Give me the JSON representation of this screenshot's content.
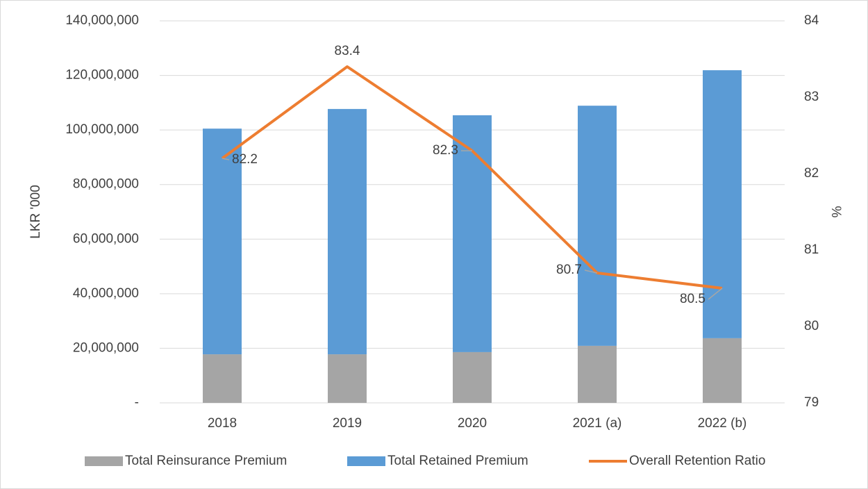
{
  "chart_data": {
    "type": "bar-line",
    "categories": [
      "2018",
      "2019",
      "2020",
      "2021 (a)",
      "2022 (b)"
    ],
    "series": [
      {
        "name": "Total Reinsurance Premium",
        "color": "#a5a5a5",
        "type": "bar",
        "values": [
          17800000,
          17800000,
          18600000,
          20900000,
          23700000
        ]
      },
      {
        "name": "Total Retained Premium",
        "color": "#5b9bd5",
        "type": "bar",
        "values": [
          82700000,
          89900000,
          86800000,
          88000000,
          98200000
        ]
      },
      {
        "name": "Overall Retention Ratio",
        "color": "#ed7d31",
        "type": "line",
        "axis": "y2",
        "values": [
          82.2,
          83.4,
          82.3,
          80.7,
          80.5
        ]
      }
    ],
    "stacked": true,
    "ylabel": "LKR '000",
    "y2label": "%",
    "ylim": [
      0,
      140000000
    ],
    "yticks": [
      {
        "value": 0,
        "label": "-"
      },
      {
        "value": 20000000,
        "label": "20,000,000"
      },
      {
        "value": 40000000,
        "label": "40,000,000"
      },
      {
        "value": 60000000,
        "label": "60,000,000"
      },
      {
        "value": 80000000,
        "label": "80,000,000"
      },
      {
        "value": 100000000,
        "label": "100,000,000"
      },
      {
        "value": 120000000,
        "label": "120,000,000"
      },
      {
        "value": 140000000,
        "label": "140,000,000"
      }
    ],
    "y2lim": [
      79,
      84
    ],
    "y2ticks": [
      79,
      80,
      81,
      82,
      83,
      84
    ],
    "grid": true,
    "legend": "bottom"
  }
}
